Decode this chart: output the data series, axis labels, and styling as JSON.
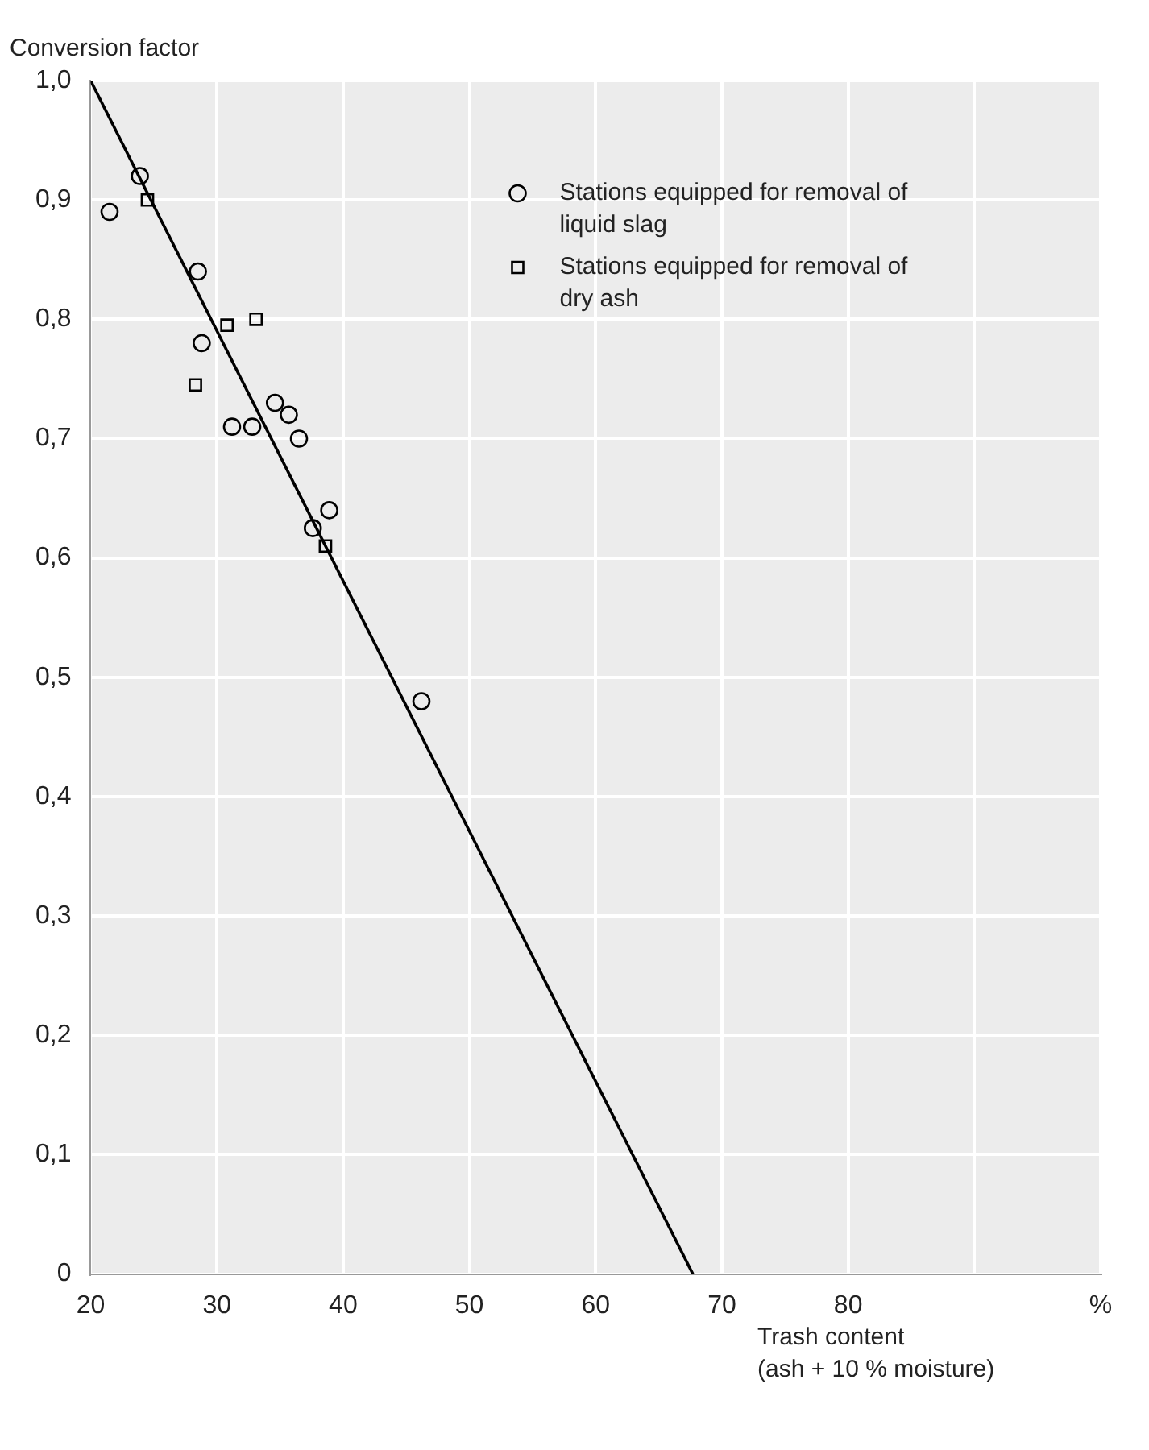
{
  "chart_data": {
    "type": "scatter",
    "ylabel": "Conversion factor",
    "xlabel": "Trash content\n(ash + 10 % moisture)",
    "xlim": [
      20,
      100
    ],
    "xticks": [
      20,
      30,
      40,
      50,
      60,
      70,
      80,
      {
        "value": 90,
        "label": null
      },
      {
        "value": 100,
        "label": "%"
      }
    ],
    "ylim": [
      0,
      1
    ],
    "yticks": [
      {
        "value": 0,
        "label": "0"
      },
      {
        "value": 0.1,
        "label": "0,1"
      },
      {
        "value": 0.2,
        "label": "0,2"
      },
      {
        "value": 0.3,
        "label": "0,3"
      },
      {
        "value": 0.4,
        "label": "0,4"
      },
      {
        "value": 0.5,
        "label": "0,5"
      },
      {
        "value": 0.6,
        "label": "0,6"
      },
      {
        "value": 0.7,
        "label": "0,7"
      },
      {
        "value": 0.8,
        "label": "0,8"
      },
      {
        "value": 0.9,
        "label": "0,9"
      },
      {
        "value": 1,
        "label": "1,0"
      }
    ],
    "grid": true,
    "legend": "top right",
    "series": [
      {
        "name": "Stations equipped for removal of liquid slag",
        "type": "scatter",
        "marker": "circle",
        "color": "#000000",
        "x": [
          23.9,
          21.5,
          28.5,
          28.8,
          31.2,
          32.8,
          34.6,
          35.7,
          36.5,
          38.9,
          37.6,
          46.2
        ],
        "values": [
          0.92,
          0.89,
          0.84,
          0.78,
          0.71,
          0.71,
          0.73,
          0.72,
          0.7,
          0.64,
          0.625,
          0.48
        ]
      },
      {
        "name": "Stations equipped for removal of dry ash",
        "type": "scatter",
        "marker": "square",
        "color": "#000000",
        "x": [
          24.5,
          30.8,
          33.1,
          28.3,
          38.6
        ],
        "values": [
          0.9,
          0.795,
          0.8,
          0.745,
          0.61
        ]
      },
      {
        "type": "line",
        "marker": "none",
        "color": "#000000",
        "x": [
          20,
          67.7
        ],
        "values": [
          1,
          0
        ]
      }
    ]
  }
}
